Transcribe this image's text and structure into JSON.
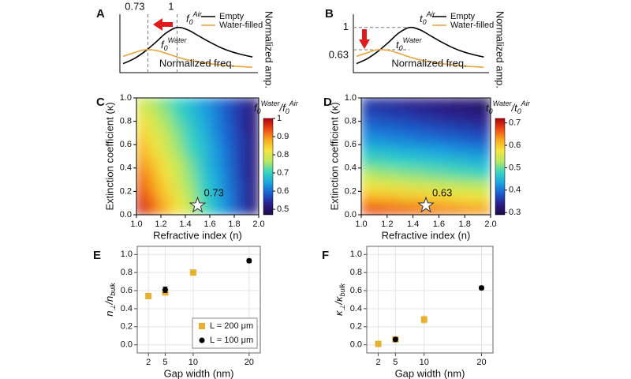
{
  "chart_data": [
    {
      "panel": "A",
      "type": "curve",
      "xlabel": "Normalized freq.",
      "ylabel": "Normalized amp.",
      "xlim": [
        0.47,
        1.75
      ],
      "ylim": [
        0.25,
        1.22
      ],
      "x": [
        0.5,
        0.6,
        0.7,
        0.8,
        0.9,
        1.0,
        1.1,
        1.2,
        1.3,
        1.4,
        1.5,
        1.6,
        1.7
      ],
      "series": [
        {
          "name": "Empty",
          "color": "#000000",
          "values": [
            0.4,
            0.48,
            0.6,
            0.75,
            0.91,
            1.0,
            0.96,
            0.86,
            0.76,
            0.67,
            0.6,
            0.55,
            0.51
          ]
        },
        {
          "name": "Water-filled",
          "color": "#e8a33a",
          "values": [
            0.52,
            0.58,
            0.63,
            0.62,
            0.57,
            0.51,
            0.46,
            0.43,
            0.4,
            0.38,
            0.36,
            0.35,
            0.34
          ]
        }
      ],
      "vlines": [
        0.73,
        1
      ],
      "annotations": [
        [
          {
            "t": "f"
          },
          {
            "t": "0",
            "s": "sub"
          },
          {
            "t": "Air",
            "s": "sup"
          }
        ],
        [
          {
            "t": "f"
          },
          {
            "t": "0",
            "s": "sub"
          },
          {
            "t": "Water",
            "s": "sup"
          }
        ]
      ]
    },
    {
      "panel": "B",
      "type": "curve",
      "xlabel": "Normalized freq.",
      "ylabel": "Normalized amp.",
      "xlim": [
        0.47,
        1.75
      ],
      "ylim": [
        0.25,
        1.22
      ],
      "x": [
        0.5,
        0.6,
        0.7,
        0.8,
        0.9,
        1.0,
        1.1,
        1.2,
        1.3,
        1.4,
        1.5,
        1.6,
        1.7
      ],
      "series": [
        {
          "name": "Empty",
          "color": "#000000",
          "values": [
            0.4,
            0.48,
            0.6,
            0.75,
            0.91,
            1.0,
            0.96,
            0.86,
            0.76,
            0.67,
            0.6,
            0.55,
            0.51
          ]
        },
        {
          "name": "Water-filled",
          "color": "#e8a33a",
          "values": [
            0.52,
            0.58,
            0.63,
            0.62,
            0.57,
            0.51,
            0.46,
            0.43,
            0.4,
            0.38,
            0.36,
            0.35,
            0.34
          ]
        }
      ],
      "hlines": [
        1,
        0.63
      ],
      "annotations": [
        [
          {
            "t": "t"
          },
          {
            "t": "0",
            "s": "sub"
          },
          {
            "t": "Air",
            "s": "sup"
          }
        ],
        [
          {
            "t": "t"
          },
          {
            "t": "0",
            "s": "sub"
          },
          {
            "t": "Water",
            "s": "sup"
          }
        ]
      ]
    },
    {
      "panel": "C",
      "type": "heatmap",
      "xlabel": "Refractive index (n)",
      "ylabel": "Extinction coefficient (κ)",
      "xlim": [
        1,
        2
      ],
      "ylim": [
        0,
        1
      ],
      "xticks": [
        {
          "value": 1,
          "label": "1.0"
        },
        1.2,
        1.4,
        1.6,
        1.8,
        {
          "value": 2,
          "label": "2.0"
        }
      ],
      "yticks": [
        {
          "value": 0,
          "label": "0.0"
        },
        0.2,
        0.4,
        0.6,
        0.8,
        {
          "value": 1,
          "label": "1.0"
        }
      ],
      "x": [
        1.05,
        1.15,
        1.25,
        1.35,
        1.45,
        1.55,
        1.65,
        1.75,
        1.85,
        1.95
      ],
      "y": [
        0.05,
        0.15,
        0.25,
        0.35,
        0.45,
        0.55,
        0.65,
        0.75,
        0.85,
        0.95
      ],
      "z": [
        [
          0.97,
          0.92,
          0.87,
          0.82,
          0.77,
          0.72,
          0.67,
          0.62,
          0.57,
          0.52
        ],
        [
          0.95,
          0.9,
          0.85,
          0.81,
          0.76,
          0.71,
          0.66,
          0.62,
          0.57,
          0.52
        ],
        [
          0.93,
          0.88,
          0.84,
          0.79,
          0.75,
          0.7,
          0.66,
          0.61,
          0.57,
          0.52
        ],
        [
          0.91,
          0.87,
          0.82,
          0.78,
          0.74,
          0.69,
          0.65,
          0.61,
          0.56,
          0.52
        ],
        [
          0.89,
          0.85,
          0.81,
          0.77,
          0.73,
          0.68,
          0.64,
          0.6,
          0.56,
          0.52
        ],
        [
          0.87,
          0.83,
          0.79,
          0.75,
          0.71,
          0.68,
          0.64,
          0.6,
          0.56,
          0.52
        ],
        [
          0.85,
          0.81,
          0.78,
          0.74,
          0.7,
          0.67,
          0.63,
          0.59,
          0.56,
          0.52
        ],
        [
          0.83,
          0.8,
          0.76,
          0.73,
          0.69,
          0.66,
          0.62,
          0.59,
          0.55,
          0.52
        ],
        [
          0.81,
          0.78,
          0.75,
          0.71,
          0.68,
          0.65,
          0.62,
          0.58,
          0.55,
          0.52
        ],
        [
          0.79,
          0.76,
          0.73,
          0.7,
          0.67,
          0.64,
          0.61,
          0.58,
          0.55,
          0.52
        ]
      ],
      "colormap": [
        "#1e0a46",
        "#2c1d8c",
        "#1b5fd0",
        "#1aa6e0",
        "#38d6c0",
        "#b8e860",
        "#f5e540",
        "#f9a81e",
        "#ec4a14",
        "#b00010"
      ],
      "clim": [
        0.47,
        1.0
      ],
      "cticks": [
        0.5,
        0.6,
        0.7,
        0.8,
        0.9,
        1
      ],
      "colorbar_label": [
        {
          "t": "f"
        },
        {
          "t": "0",
          "s": "sub"
        },
        {
          "t": "Water",
          "s": "sup"
        },
        {
          "t": "/f"
        },
        {
          "t": "0",
          "s": "sub"
        },
        {
          "t": "Air",
          "s": "sup"
        }
      ],
      "star": {
        "x": 1.5,
        "y": 0.08,
        "value": 0.73
      }
    },
    {
      "panel": "D",
      "type": "heatmap",
      "xlabel": "Refractive index (n)",
      "ylabel": "Extinction coefficient (κ)",
      "xlim": [
        1,
        2
      ],
      "ylim": [
        0,
        1
      ],
      "xticks": [
        {
          "value": 1,
          "label": "1.0"
        },
        1.2,
        1.4,
        1.6,
        1.8,
        {
          "value": 2,
          "label": "2.0"
        }
      ],
      "yticks": [
        {
          "value": 0,
          "label": "0.0"
        },
        0.2,
        0.4,
        0.6,
        0.8,
        {
          "value": 1,
          "label": "1.0"
        }
      ],
      "x": [
        1.05,
        1.15,
        1.25,
        1.35,
        1.45,
        1.55,
        1.65,
        1.75,
        1.85,
        1.95
      ],
      "y": [
        0.05,
        0.15,
        0.25,
        0.35,
        0.45,
        0.55,
        0.65,
        0.75,
        0.85,
        0.95
      ],
      "z": [
        [
          0.67,
          0.67,
          0.66,
          0.66,
          0.65,
          0.65,
          0.64,
          0.64,
          0.63,
          0.63
        ],
        [
          0.62,
          0.61,
          0.61,
          0.6,
          0.6,
          0.59,
          0.59,
          0.58,
          0.58,
          0.57
        ],
        [
          0.57,
          0.57,
          0.56,
          0.56,
          0.55,
          0.55,
          0.54,
          0.54,
          0.53,
          0.53
        ],
        [
          0.53,
          0.52,
          0.52,
          0.51,
          0.51,
          0.5,
          0.5,
          0.49,
          0.49,
          0.48
        ],
        [
          0.49,
          0.49,
          0.48,
          0.48,
          0.47,
          0.47,
          0.46,
          0.46,
          0.45,
          0.45
        ],
        [
          0.46,
          0.45,
          0.45,
          0.44,
          0.44,
          0.43,
          0.43,
          0.42,
          0.42,
          0.41
        ],
        [
          0.42,
          0.42,
          0.41,
          0.41,
          0.4,
          0.4,
          0.39,
          0.39,
          0.38,
          0.38
        ],
        [
          0.4,
          0.39,
          0.39,
          0.38,
          0.38,
          0.37,
          0.37,
          0.36,
          0.36,
          0.35
        ],
        [
          0.37,
          0.37,
          0.36,
          0.36,
          0.35,
          0.35,
          0.34,
          0.34,
          0.33,
          0.33
        ],
        [
          0.36,
          0.35,
          0.35,
          0.34,
          0.34,
          0.33,
          0.33,
          0.32,
          0.32,
          0.31
        ]
      ],
      "colormap": [
        "#1e0a46",
        "#2c1d8c",
        "#1b5fd0",
        "#1aa6e0",
        "#38d6c0",
        "#b8e860",
        "#f5e540",
        "#f9a81e",
        "#ec4a14",
        "#b00010"
      ],
      "clim": [
        0.29,
        0.72
      ],
      "cticks": [
        0.3,
        0.4,
        0.5,
        0.6,
        0.7
      ],
      "colorbar_label": [
        {
          "t": "t"
        },
        {
          "t": "0",
          "s": "sub"
        },
        {
          "t": "Water",
          "s": "sup"
        },
        {
          "t": "/t"
        },
        {
          "t": "0",
          "s": "sub"
        },
        {
          "t": "Air",
          "s": "sup"
        }
      ],
      "star": {
        "x": 1.5,
        "y": 0.08,
        "value": 0.63
      }
    },
    {
      "panel": "E",
      "type": "errorbar",
      "xlabel": "Gap width (nm)",
      "ylabel": [
        {
          "t": "n"
        },
        {
          "t": "⊥",
          "s": "sub"
        },
        {
          "t": "/n"
        },
        {
          "t": "bulk",
          "s": "sub"
        }
      ],
      "xlim": [
        0,
        22
      ],
      "ylim": [
        -0.09,
        1.09
      ],
      "xticks": [
        2,
        5,
        10,
        20
      ],
      "yticks": [
        {
          "value": 0,
          "label": "0.0"
        },
        0.2,
        0.4,
        0.6,
        0.8,
        {
          "value": 1,
          "label": "1.0"
        }
      ],
      "grid": true,
      "legend": "lower right",
      "series": [
        {
          "name": "L = 200 μm",
          "color": "#e6b030",
          "marker": "square",
          "x": [
            2,
            5,
            10
          ],
          "values": [
            0.54,
            0.58,
            0.8
          ],
          "errors": [
            0.03,
            0.03,
            0.02
          ]
        },
        {
          "name": "L = 100 μm",
          "color": "#000000",
          "marker": "circle",
          "x": [
            5,
            20
          ],
          "values": [
            0.61,
            0.93
          ],
          "errors": [
            0.03,
            0.02
          ]
        }
      ]
    },
    {
      "panel": "F",
      "type": "errorbar",
      "xlabel": "Gap width (nm)",
      "ylabel": [
        {
          "t": "κ"
        },
        {
          "t": "⊥",
          "s": "sub"
        },
        {
          "t": "/κ"
        },
        {
          "t": "bulk",
          "s": "sub"
        }
      ],
      "xlim": [
        0,
        22
      ],
      "ylim": [
        -0.09,
        1.09
      ],
      "xticks": [
        2,
        5,
        10,
        20
      ],
      "yticks": [
        {
          "value": 0,
          "label": "0.0"
        },
        0.2,
        0.4,
        0.6,
        0.8,
        {
          "value": 1,
          "label": "1.0"
        }
      ],
      "grid": true,
      "series": [
        {
          "color": "#e6b030",
          "marker": "square",
          "x": [
            2,
            5,
            10
          ],
          "values": [
            0.01,
            0.06,
            0.28
          ],
          "errors": [
            0.02,
            0.02,
            0.04
          ]
        },
        {
          "color": "#000000",
          "marker": "circle",
          "x": [
            5,
            20
          ],
          "values": [
            0.06,
            0.63
          ],
          "errors": [
            0.02,
            0.02
          ]
        }
      ]
    }
  ]
}
